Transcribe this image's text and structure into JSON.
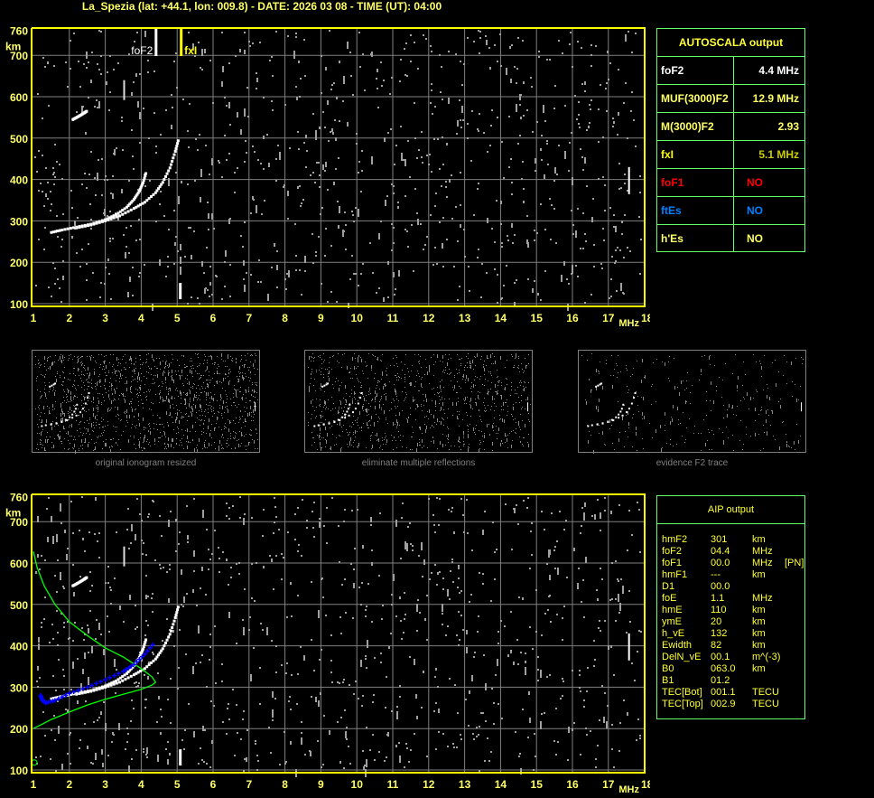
{
  "header": {
    "title": "La_Spezia (lat: +44.1, lon: 009.8) - DATE: 2026 03 08 - TIME (UT): 04:00"
  },
  "axes": {
    "y_ticks": [
      "760",
      "700",
      "600",
      "500",
      "400",
      "300",
      "200",
      "100"
    ],
    "y_unit": "km",
    "x_ticks": [
      "1",
      "2",
      "3",
      "4",
      "5",
      "6",
      "7",
      "8",
      "9",
      "10",
      "11",
      "12",
      "13",
      "14",
      "15",
      "16",
      "17",
      "18"
    ],
    "x_unit": "MHz"
  },
  "markers": {
    "fof2_label": "foF2",
    "fxi_label": "fxI"
  },
  "autoscala": {
    "title": "AUTOSCALA output",
    "rows": [
      {
        "key": "foF2",
        "value": "4.4 MHz",
        "color": "#ffffff",
        "vcolor": "#ffffff"
      },
      {
        "key": "MUF(3000)F2",
        "value": "12.9 MHz",
        "color": "#ffff66",
        "vcolor": "#ffff66"
      },
      {
        "key": "M(3000)F2",
        "value": "2.93",
        "color": "#ffff66",
        "vcolor": "#ffff66"
      },
      {
        "key": "fxI",
        "value": "5.1 MHz",
        "color": "#ffff00",
        "vcolor": "#cccc00"
      },
      {
        "key": "foF1",
        "value": "NO",
        "color": "#ff0000",
        "vcolor": "#ff0000"
      },
      {
        "key": "ftEs",
        "value": "NO",
        "color": "#0080ff",
        "vcolor": "#0080ff"
      },
      {
        "key": "h'Es",
        "value": "NO",
        "color": "#ffff66",
        "vcolor": "#ffff66"
      }
    ]
  },
  "thumbnails": [
    {
      "caption": "original ionogram resized"
    },
    {
      "caption": "eliminate multiple reflections"
    },
    {
      "caption": "evidence F2 trace"
    }
  ],
  "aip": {
    "title": "AIP output",
    "rows": [
      [
        "hmF2",
        "301",
        "km",
        ""
      ],
      [
        "foF2",
        "04.4",
        "MHz",
        ""
      ],
      [
        "foF1",
        "00.0",
        "MHz",
        "[PN]"
      ],
      [
        "hmF1",
        "---",
        "km",
        ""
      ],
      [
        "D1",
        "00.0",
        "",
        ""
      ],
      [
        "foE",
        "1.1",
        "MHz",
        ""
      ],
      [
        "hmE",
        "110",
        "km",
        ""
      ],
      [
        "ymE",
        "20",
        "km",
        ""
      ],
      [
        "h_vE",
        "132",
        "km",
        ""
      ],
      [
        "Ewidth",
        "82",
        "km",
        ""
      ],
      [
        "DelN_vE",
        "00.1",
        "m^(-3)",
        ""
      ],
      [
        "B0",
        "063.0",
        "km",
        ""
      ],
      [
        "B1",
        "01.2",
        "",
        ""
      ],
      [
        "TEC[Bot]",
        "001.1",
        "TECU",
        ""
      ],
      [
        "TEC[Top]",
        "002.9",
        "TECU",
        ""
      ]
    ]
  },
  "colors": {
    "axis": "#ffff00",
    "grid": "#808080",
    "table_border": "#66ff66",
    "trace": "#ffffff",
    "noise": "#a0a0a0",
    "profile": "#00ff00",
    "fit": "#0000ff"
  },
  "chart_data": [
    {
      "type": "scatter",
      "title": "",
      "xlabel": "MHz",
      "ylabel": "km",
      "xlim": [
        1,
        18
      ],
      "ylim": [
        100,
        760
      ],
      "grid": true,
      "fof2_MHz": 4.4,
      "fxi_MHz": 5.1,
      "series": [
        {
          "role": "o-trace",
          "points": [
            [
              1.5,
              272
            ],
            [
              1.8,
              278
            ],
            [
              2.2,
              285
            ],
            [
              2.6,
              292
            ],
            [
              3.0,
              303
            ],
            [
              3.3,
              315
            ],
            [
              3.6,
              333
            ],
            [
              3.8,
              352
            ],
            [
              3.95,
              372
            ],
            [
              4.05,
              392
            ],
            [
              4.15,
              420
            ]
          ]
        },
        {
          "role": "x-trace",
          "points": [
            [
              2.2,
              283
            ],
            [
              2.6,
              290
            ],
            [
              3.0,
              300
            ],
            [
              3.4,
              312
            ],
            [
              3.8,
              330
            ],
            [
              4.1,
              345
            ],
            [
              4.4,
              368
            ],
            [
              4.6,
              393
            ],
            [
              4.8,
              428
            ],
            [
              4.95,
              468
            ],
            [
              5.05,
              500
            ]
          ]
        },
        {
          "role": "second-hop",
          "points": [
            [
              2.1,
              545
            ],
            [
              2.25,
              552
            ],
            [
              2.4,
              560
            ],
            [
              2.5,
              566
            ]
          ]
        }
      ]
    },
    {
      "type": "line",
      "title": "",
      "xlabel": "MHz",
      "ylabel": "km",
      "xlim": [
        1,
        18
      ],
      "ylim": [
        100,
        760
      ],
      "grid": true,
      "series": [
        {
          "role": "profile",
          "points": [
            [
              1,
              200
            ],
            [
              1.5,
              222
            ],
            [
              2,
              240
            ],
            [
              2.5,
              257
            ],
            [
              3,
              271
            ],
            [
              3.5,
              283
            ],
            [
              4,
              295
            ],
            [
              4.3,
              305
            ],
            [
              4.4,
              312
            ],
            [
              4.3,
              325
            ],
            [
              4,
              345
            ],
            [
              3.5,
              373
            ],
            [
              3,
              395
            ],
            [
              2.5,
              425
            ],
            [
              2,
              458
            ],
            [
              1.6,
              500
            ],
            [
              1.3,
              545
            ],
            [
              1.1,
              590
            ],
            [
              1,
              628
            ]
          ]
        },
        {
          "role": "fit",
          "points": [
            [
              1.2,
              280
            ],
            [
              1.25,
              268
            ],
            [
              1.35,
              262
            ],
            [
              1.6,
              268
            ],
            [
              2,
              285
            ],
            [
              2.5,
              300
            ],
            [
              3,
              318
            ],
            [
              3.5,
              338
            ],
            [
              3.8,
              355
            ],
            [
              4.1,
              380
            ],
            [
              4.4,
              410
            ]
          ]
        }
      ]
    }
  ]
}
